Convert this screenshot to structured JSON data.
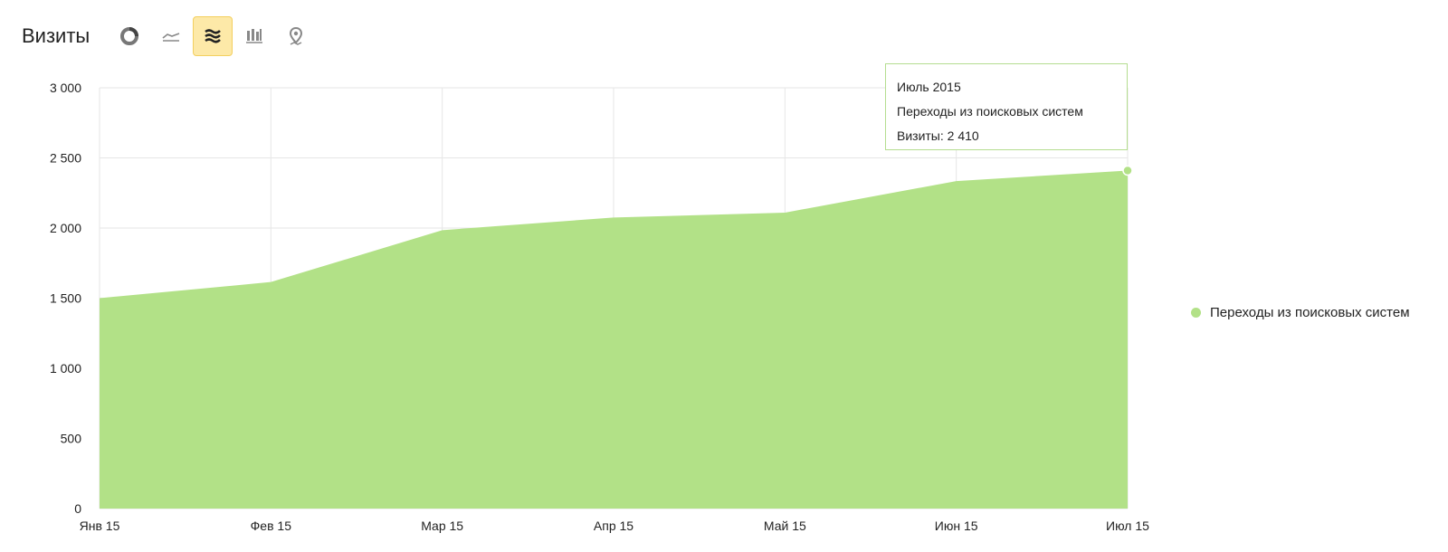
{
  "header": {
    "title": "Визиты",
    "tools": [
      {
        "name": "pie-chart",
        "icon": "pie-chart-icon",
        "active": false
      },
      {
        "name": "line-chart",
        "icon": "line-chart-icon",
        "active": false
      },
      {
        "name": "area-chart",
        "icon": "area-chart-icon",
        "active": true
      },
      {
        "name": "bar-chart",
        "icon": "bar-chart-icon",
        "active": false
      },
      {
        "name": "map",
        "icon": "map-pin-icon",
        "active": false
      }
    ]
  },
  "tooltip": {
    "period": "Июль 2015",
    "series": "Переходы из поисковых систем",
    "value_text": "Визиты: 2 410"
  },
  "legend": {
    "items": [
      {
        "label": "Переходы из поисковых систем",
        "color": "#b2e187"
      }
    ]
  },
  "colors": {
    "area_fill": "#b2e187",
    "accent_active": "#fde9a8",
    "grid": "#e6e6e6"
  },
  "chart_data": {
    "type": "area",
    "categories": [
      "Янв 15",
      "Фев 15",
      "Мар 15",
      "Апр 15",
      "Май 15",
      "Июн 15",
      "Июл 15"
    ],
    "series": [
      {
        "name": "Переходы из поисковых систем",
        "values": [
          1500,
          1615,
          1985,
          2075,
          2110,
          2335,
          2410
        ]
      }
    ],
    "yticks": [
      0,
      500,
      1000,
      1500,
      2000,
      2500,
      3000
    ],
    "ytick_labels": [
      "0",
      "500",
      "1 000",
      "1 500",
      "2 000",
      "2 500",
      "3 000"
    ],
    "ylim": [
      0,
      3000
    ],
    "grid": true,
    "legend_position": "right"
  }
}
